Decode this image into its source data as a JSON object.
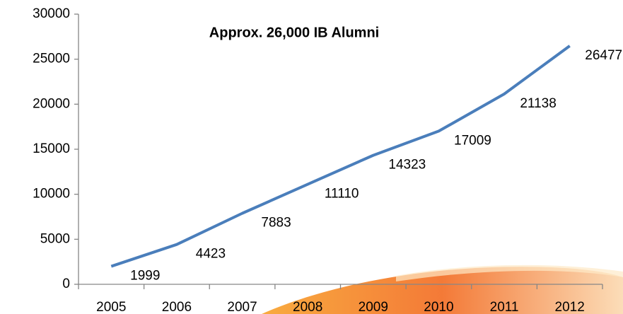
{
  "chart_data": {
    "type": "line",
    "title": "Approx. 26,000 IB Alumni",
    "categories": [
      "2005",
      "2006",
      "2007",
      "2008",
      "2009",
      "2010",
      "2011",
      "2012"
    ],
    "values": [
      1999,
      4423,
      7883,
      11110,
      14323,
      17009,
      21138,
      26477
    ],
    "color": "#4a7ebb",
    "ylim": [
      0,
      30000
    ],
    "yticks": [
      0,
      5000,
      10000,
      15000,
      20000,
      25000,
      30000
    ]
  }
}
